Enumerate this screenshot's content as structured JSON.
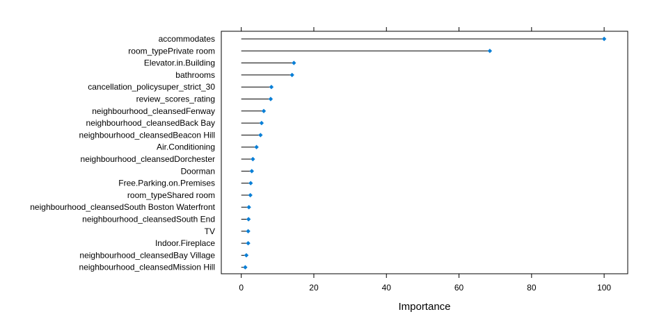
{
  "chart_data": {
    "type": "dotplot",
    "xlabel": "Importance",
    "ylabel": "",
    "xlim": [
      -5.5,
      106.5
    ],
    "xticks": [
      0,
      20,
      40,
      60,
      80,
      100
    ],
    "grid": false,
    "legend": "none",
    "colors": {
      "point": "#0a7fd6",
      "segment": "#000000",
      "frame": "#000000"
    },
    "categories": [
      "accommodates",
      "room_typePrivate room",
      "Elevator.in.Building",
      "bathrooms",
      "cancellation_policysuper_strict_30",
      "review_scores_rating",
      "neighbourhood_cleansedFenway",
      "neighbourhood_cleansedBack Bay",
      "neighbourhood_cleansedBeacon Hill",
      "Air.Conditioning",
      "neighbourhood_cleansedDorchester",
      "Doorman",
      "Free.Parking.on.Premises",
      "room_typeShared room",
      "neighbourhood_cleansedSouth Boston Waterfront",
      "neighbourhood_cleansedSouth End",
      "TV",
      "Indoor.Fireplace",
      "neighbourhood_cleansedBay Village",
      "neighbourhood_cleansedMission Hill"
    ],
    "values": [
      100,
      68.5,
      14.5,
      14,
      8.3,
      8.1,
      6.2,
      5.6,
      5.3,
      4.2,
      3.2,
      2.9,
      2.6,
      2.5,
      2.1,
      2.0,
      1.9,
      1.9,
      1.4,
      1.1
    ]
  }
}
